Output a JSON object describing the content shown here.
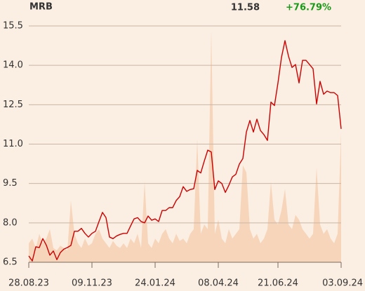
{
  "chart_data": {
    "type": "line",
    "title": "MRB",
    "last_price": 11.58,
    "change": "+76.79%",
    "change_color": "#1a9a1a",
    "grid": true,
    "ylim": [
      6.5,
      15.5
    ],
    "yticks": [
      6.5,
      {
        "value": 8.0,
        "label": "8.0"
      },
      9.5,
      {
        "value": 11.0,
        "label": "11.0"
      },
      12.5,
      {
        "value": 14.0,
        "label": "14.0"
      },
      15.5
    ],
    "xlim": [
      0,
      89
    ],
    "xticks": [
      {
        "value": 0,
        "label": "28.08.23"
      },
      {
        "value": 18,
        "label": "09.11.23"
      },
      {
        "value": 36,
        "label": "24.01.24"
      },
      {
        "value": 54,
        "label": "08.04.24"
      },
      {
        "value": 71,
        "label": "21.06.24"
      },
      {
        "value": 89,
        "label": "03.09.24"
      }
    ],
    "y2lim": [
      0,
      100
    ],
    "series": [
      {
        "name": "price",
        "color": "#cc0000",
        "values": [
          6.74,
          6.55,
          7.09,
          7.06,
          7.4,
          7.15,
          6.77,
          6.93,
          6.6,
          6.87,
          7.0,
          7.06,
          7.14,
          7.68,
          7.68,
          7.79,
          7.6,
          7.46,
          7.6,
          7.68,
          8.05,
          8.4,
          8.2,
          7.46,
          7.4,
          7.5,
          7.56,
          7.6,
          7.6,
          7.88,
          8.15,
          8.2,
          8.05,
          8.0,
          8.26,
          8.1,
          8.15,
          8.05,
          8.47,
          8.47,
          8.58,
          8.58,
          8.85,
          9.0,
          9.38,
          9.2,
          9.27,
          9.3,
          10.0,
          9.9,
          10.35,
          10.77,
          10.7,
          9.27,
          9.6,
          9.5,
          9.16,
          9.43,
          9.75,
          9.85,
          10.24,
          10.45,
          11.46,
          11.9,
          11.46,
          11.95,
          11.52,
          11.36,
          11.14,
          12.6,
          12.47,
          13.33,
          14.3,
          14.94,
          14.35,
          13.92,
          14.03,
          13.33,
          14.19,
          14.19,
          14.03,
          13.87,
          12.53,
          13.39,
          12.9,
          13.02,
          12.96,
          12.96,
          12.85,
          11.58
        ]
      },
      {
        "name": "volume",
        "color": "#f6d5bb",
        "axis": "y2",
        "values": [
          8,
          10,
          6,
          12,
          8,
          10,
          14,
          6,
          5,
          7,
          6,
          5,
          26,
          12,
          8,
          6,
          10,
          7,
          8,
          12,
          14,
          10,
          8,
          6,
          9,
          7,
          6,
          8,
          6,
          10,
          8,
          12,
          6,
          34,
          8,
          6,
          10,
          8,
          12,
          14,
          10,
          8,
          12,
          9,
          10,
          8,
          12,
          14,
          52,
          12,
          16,
          14,
          98,
          12,
          18,
          10,
          8,
          14,
          10,
          12,
          14,
          41,
          38,
          14,
          10,
          12,
          8,
          10,
          14,
          34,
          18,
          16,
          22,
          31,
          16,
          14,
          20,
          18,
          14,
          12,
          10,
          12,
          40,
          16,
          12,
          14,
          10,
          8,
          12,
          55
        ]
      }
    ]
  }
}
